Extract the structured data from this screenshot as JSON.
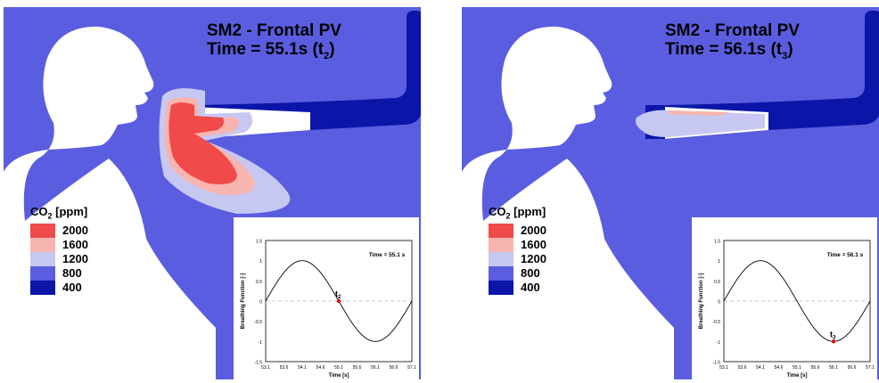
{
  "panels": [
    {
      "title_line1": "SM2 - Frontal PV",
      "title_line2": "Time = 55.1s (t",
      "title_sub": "2",
      "title_end": ")",
      "inset_time": "Time = 55.1 s",
      "marker_label": "t",
      "marker_sub": "2"
    },
    {
      "title_line1": "SM2 - Frontal PV",
      "title_line2": "Time = 56.1s (t",
      "title_sub": "3",
      "title_end": ")",
      "inset_time": "Time = 56.1 s",
      "marker_label": "t",
      "marker_sub": "3"
    }
  ],
  "legend": {
    "title": "CO",
    "title_sub": "2",
    "title_unit": " [ppm]",
    "levels": [
      {
        "label": "2000",
        "color": "#f04a4a"
      },
      {
        "label": "1600",
        "color": "#f8b4ae"
      },
      {
        "label": "1200",
        "color": "#c7c8f2"
      },
      {
        "label": "800",
        "color": "#5b5de0"
      },
      {
        "label": "400",
        "color": "#0b16a8"
      }
    ]
  },
  "inset_axes": {
    "xlabel": "Time [s]",
    "ylabel": "Breathing Function [-]",
    "xticks": [
      "53.1",
      "53.6",
      "54.1",
      "54.6",
      "55.1",
      "55.6",
      "56.1",
      "56.6",
      "57.1"
    ],
    "yticks": [
      "1.5",
      "1",
      "0.5",
      "0",
      "-0.5",
      "-1",
      "-1.5"
    ]
  },
  "colors": {
    "background": "#5b5de0",
    "duct": "#0b16a8",
    "marker": "#e01010"
  }
}
